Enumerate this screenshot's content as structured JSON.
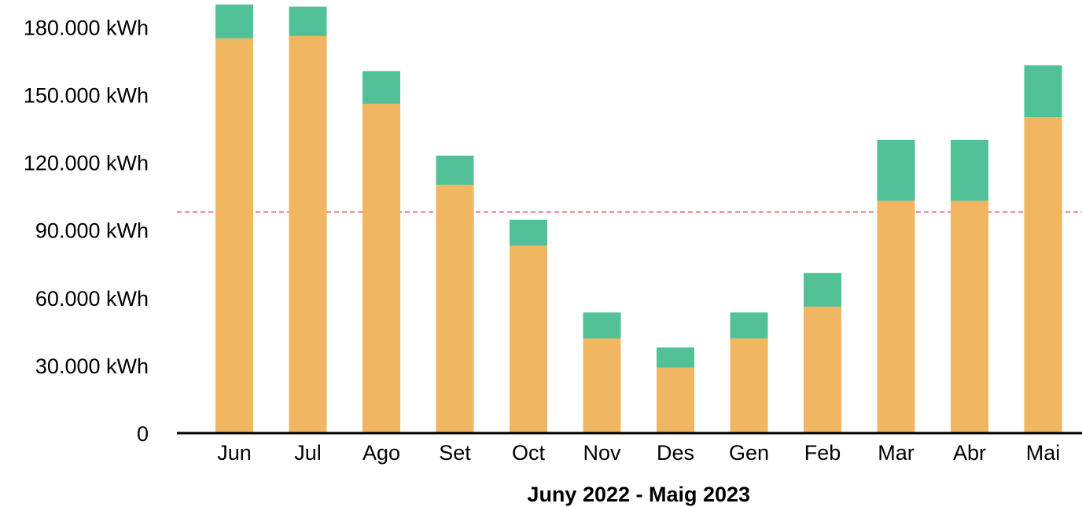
{
  "chart_data": {
    "type": "bar",
    "stacked": true,
    "xlabel": "Juny 2022 - Maig 2023",
    "ylabel": "",
    "title": "",
    "ylim": [
      0,
      190000
    ],
    "y_ticks": [
      0,
      30000,
      60000,
      90000,
      120000,
      150000,
      180000
    ],
    "y_tick_labels": [
      "0",
      "30.000 kWh",
      "60.000 kWh",
      "90.000 kWh",
      "120.000 kWh",
      "150.000 kWh",
      "180.000 kWh"
    ],
    "categories": [
      "Jun",
      "Jul",
      "Ago",
      "Set",
      "Oct",
      "Nov",
      "Des",
      "Gen",
      "Feb",
      "Mar",
      "Abr",
      "Mai"
    ],
    "series": [
      {
        "color": "#F0B661",
        "values": [
          175000,
          176000,
          146000,
          110000,
          83000,
          42000,
          29000,
          42000,
          56000,
          103000,
          103000,
          140000
        ]
      },
      {
        "color": "#52C197",
        "values": [
          15000,
          13000,
          14500,
          13000,
          11500,
          11500,
          9000,
          11500,
          15000,
          27000,
          27000,
          23000
        ]
      }
    ],
    "reference_line": {
      "value": 98000,
      "color": "#E05A5A",
      "style": "dashed"
    },
    "grid": false,
    "legend": "none"
  }
}
